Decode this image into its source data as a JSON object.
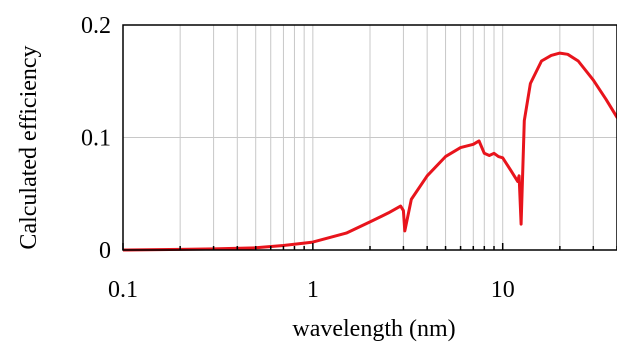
{
  "chart_data": {
    "type": "line",
    "title": "",
    "xlabel": "wavelength (nm)",
    "ylabel": "Calculated efficiency",
    "x_scale": "log",
    "xlim": [
      0.1,
      40
    ],
    "ylim": [
      0,
      0.2
    ],
    "x_ticks": [
      {
        "value": 0.1,
        "label": "0.1"
      },
      {
        "value": 1,
        "label": "1"
      },
      {
        "value": 10,
        "label": "10"
      }
    ],
    "y_ticks": [
      {
        "value": 0,
        "label": "0"
      },
      {
        "value": 0.1,
        "label": "0.1"
      },
      {
        "value": 0.2,
        "label": "0.2"
      }
    ],
    "grid": {
      "vertical_minor": true,
      "horizontal": true
    },
    "legend": "none",
    "series": [
      {
        "color": "#e8141c",
        "x": [
          0.1,
          0.2,
          0.3,
          0.5,
          0.7,
          1.0,
          1.5,
          2.0,
          2.5,
          2.9,
          3.0,
          3.05,
          3.3,
          4.0,
          5.0,
          6.0,
          7.0,
          7.5,
          8.0,
          8.5,
          9.0,
          9.5,
          10.0,
          11.0,
          12.0,
          12.2,
          12.5,
          13.0,
          14.0,
          16.0,
          18.0,
          20.0,
          22.0,
          25.0,
          30.0,
          35.0,
          40.0
        ],
        "y": [
          0.0,
          0.0005,
          0.001,
          0.002,
          0.004,
          0.007,
          0.015,
          0.025,
          0.033,
          0.039,
          0.035,
          0.017,
          0.045,
          0.066,
          0.083,
          0.091,
          0.094,
          0.097,
          0.086,
          0.084,
          0.086,
          0.083,
          0.082,
          0.071,
          0.061,
          0.066,
          0.023,
          0.115,
          0.148,
          0.168,
          0.173,
          0.175,
          0.174,
          0.168,
          0.151,
          0.134,
          0.118
        ]
      }
    ]
  }
}
